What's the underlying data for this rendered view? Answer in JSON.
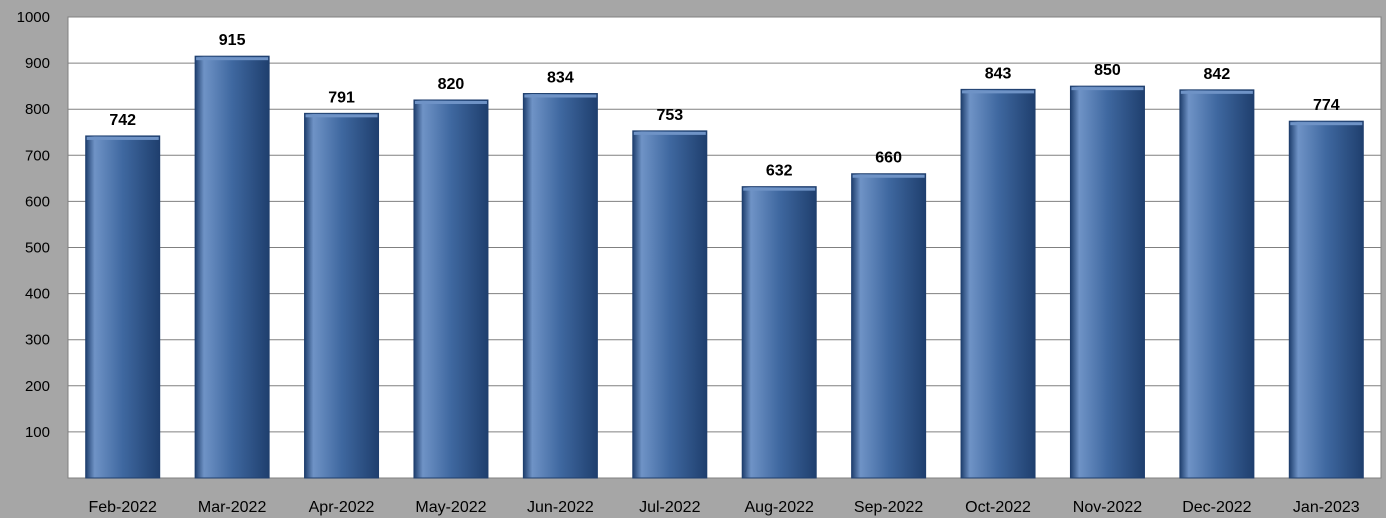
{
  "chart_data": {
    "type": "bar",
    "categories": [
      "Feb-2022",
      "Mar-2022",
      "Apr-2022",
      "May-2022",
      "Jun-2022",
      "Jul-2022",
      "Aug-2022",
      "Sep-2022",
      "Oct-2022",
      "Nov-2022",
      "Dec-2022",
      "Jan-2023"
    ],
    "values": [
      742,
      915,
      791,
      820,
      834,
      753,
      632,
      660,
      843,
      850,
      842,
      774
    ],
    "data_labels": [
      "742",
      "915",
      "791",
      "820",
      "834",
      "753",
      "632",
      "660",
      "843",
      "850",
      "842",
      "774"
    ],
    "title": "",
    "xlabel": "",
    "ylabel": "",
    "ylim": [
      0,
      1000
    ],
    "yticks": [
      100,
      200,
      300,
      400,
      500,
      600,
      700,
      800,
      900,
      1000
    ],
    "ytick_labels": [
      "100",
      "200",
      "300",
      "400",
      "500",
      "600",
      "700",
      "800",
      "900",
      "1000"
    ],
    "grid": true,
    "legend": "none"
  },
  "colors": {
    "background": "#a6a6a6",
    "plot_area": "#ffffff",
    "gridline": "#808080",
    "bar_fill": "#3f68a0",
    "bar_highlight": "#6f93c6",
    "bar_edge": "#1f3f6e"
  }
}
